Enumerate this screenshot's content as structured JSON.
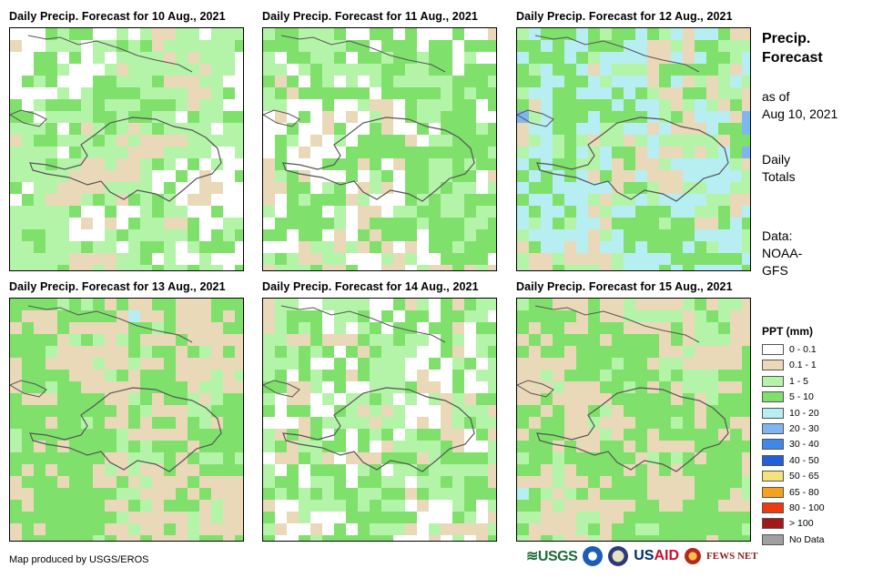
{
  "panels": [
    {
      "title": "Daily Precip. Forecast for 10 Aug., 2021",
      "seed": 11,
      "base": "tan",
      "date": "10 Aug., 2021"
    },
    {
      "title": "Daily Precip. Forecast for 11 Aug., 2021",
      "seed": 23,
      "base": "mix",
      "date": "11 Aug., 2021"
    },
    {
      "title": "Daily Precip. Forecast for 12 Aug., 2021",
      "seed": 37,
      "base": "wet",
      "date": "12 Aug., 2021"
    },
    {
      "title": "Daily Precip. Forecast for 13 Aug., 2021",
      "seed": 51,
      "base": "green",
      "date": "13 Aug., 2021"
    },
    {
      "title": "Daily Precip. Forecast for 14 Aug., 2021",
      "seed": 67,
      "base": "mixtan",
      "date": "14 Aug., 2021"
    },
    {
      "title": "Daily Precip. Forecast for 15 Aug., 2021",
      "seed": 83,
      "base": "green",
      "date": "15 Aug., 2021"
    }
  ],
  "sidebar": {
    "title_line1": "Precip.",
    "title_line2": "Forecast",
    "asof_line1": "as of",
    "asof_line2": "Aug 10, 2021",
    "totals_line1": "Daily",
    "totals_line2": "Totals",
    "data_line1": "Data:",
    "data_line2": "NOAA-",
    "data_line3": "GFS"
  },
  "legend": {
    "title": "PPT (mm)",
    "items": [
      {
        "label": "0 - 0.1",
        "color": "#ffffff"
      },
      {
        "label": "0.1 - 1",
        "color": "#ead9b9"
      },
      {
        "label": "1 - 5",
        "color": "#b4f4a8"
      },
      {
        "label": "5 - 10",
        "color": "#7fe16c"
      },
      {
        "label": "10 - 20",
        "color": "#b6eef2"
      },
      {
        "label": "20 - 30",
        "color": "#7fb6f0"
      },
      {
        "label": "30 - 40",
        "color": "#3f87e8"
      },
      {
        "label": "40 - 50",
        "color": "#1f5fd8"
      },
      {
        "label": "50 - 65",
        "color": "#f6e27a"
      },
      {
        "label": "65 - 80",
        "color": "#f6a11c"
      },
      {
        "label": "80 - 100",
        "color": "#ef3a10"
      },
      {
        "label": "> 100",
        "color": "#a31818"
      },
      {
        "label": "No Data",
        "color": "#a0a0a0"
      }
    ]
  },
  "credit": "Map produced by USGS/EROS",
  "logos": {
    "usgs": "≋USGS",
    "usaid_a": "US",
    "usaid_b": "AID",
    "fews": "FEWS NET"
  }
}
